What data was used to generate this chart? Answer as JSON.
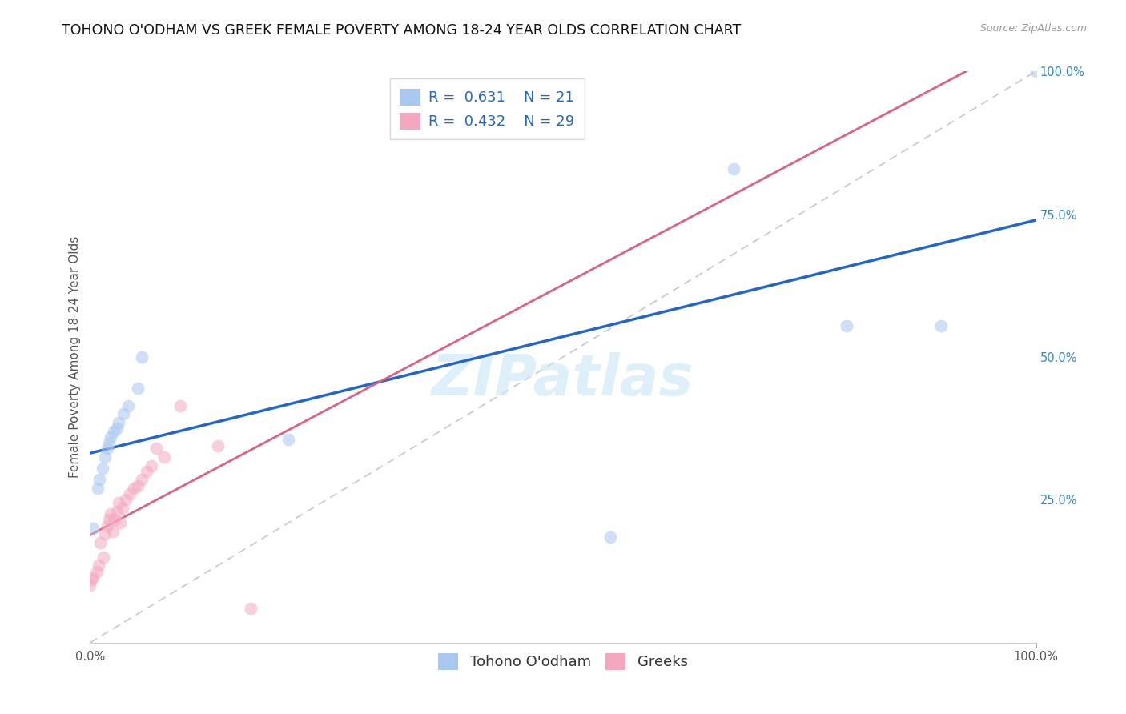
{
  "title": "TOHONO O'ODHAM VS GREEK FEMALE POVERTY AMONG 18-24 YEAR OLDS CORRELATION CHART",
  "source": "Source: ZipAtlas.com",
  "ylabel": "Female Poverty Among 18-24 Year Olds",
  "blue_label": "Tohono O'odham",
  "pink_label": "Greeks",
  "blue_R": 0.631,
  "blue_N": 21,
  "pink_R": 0.432,
  "pink_N": 29,
  "blue_color": "#A8C8F0",
  "pink_color": "#F4A8C0",
  "blue_line_color": "#2266CC",
  "pink_line_color": "#E06080",
  "ref_line_color": "#C8C8C8",
  "watermark": "ZIPatlas",
  "blue_x": [
    0.003,
    0.008,
    0.01,
    0.013,
    0.016,
    0.018,
    0.02,
    0.022,
    0.025,
    0.028,
    0.03,
    0.035,
    0.04,
    0.05,
    0.055,
    0.21,
    0.55,
    0.68,
    0.8,
    0.9,
    1.0
  ],
  "blue_y": [
    0.2,
    0.27,
    0.285,
    0.305,
    0.325,
    0.34,
    0.35,
    0.36,
    0.37,
    0.375,
    0.385,
    0.4,
    0.415,
    0.445,
    0.5,
    0.355,
    0.185,
    0.83,
    0.555,
    0.555,
    1.0
  ],
  "pink_x": [
    0.0,
    0.001,
    0.003,
    0.007,
    0.009,
    0.011,
    0.014,
    0.016,
    0.018,
    0.02,
    0.022,
    0.024,
    0.026,
    0.028,
    0.03,
    0.032,
    0.034,
    0.038,
    0.042,
    0.046,
    0.05,
    0.055,
    0.06,
    0.065,
    0.07,
    0.078,
    0.095,
    0.135,
    0.17
  ],
  "pink_y": [
    0.1,
    0.11,
    0.115,
    0.125,
    0.135,
    0.175,
    0.15,
    0.19,
    0.205,
    0.215,
    0.225,
    0.195,
    0.215,
    0.23,
    0.245,
    0.21,
    0.235,
    0.25,
    0.26,
    0.27,
    0.275,
    0.285,
    0.3,
    0.31,
    0.34,
    0.325,
    0.415,
    0.345,
    0.06
  ],
  "xlim": [
    0.0,
    1.0
  ],
  "ylim": [
    0.0,
    1.0
  ],
  "yticks": [
    0.25,
    0.5,
    0.75,
    1.0
  ],
  "right_yticklabels": [
    "25.0%",
    "50.0%",
    "75.0%",
    "100.0%"
  ],
  "marker_size": 130,
  "marker_alpha": 0.55,
  "title_fontsize": 12.5,
  "axis_label_fontsize": 11,
  "tick_fontsize": 10.5,
  "legend_fontsize": 13
}
